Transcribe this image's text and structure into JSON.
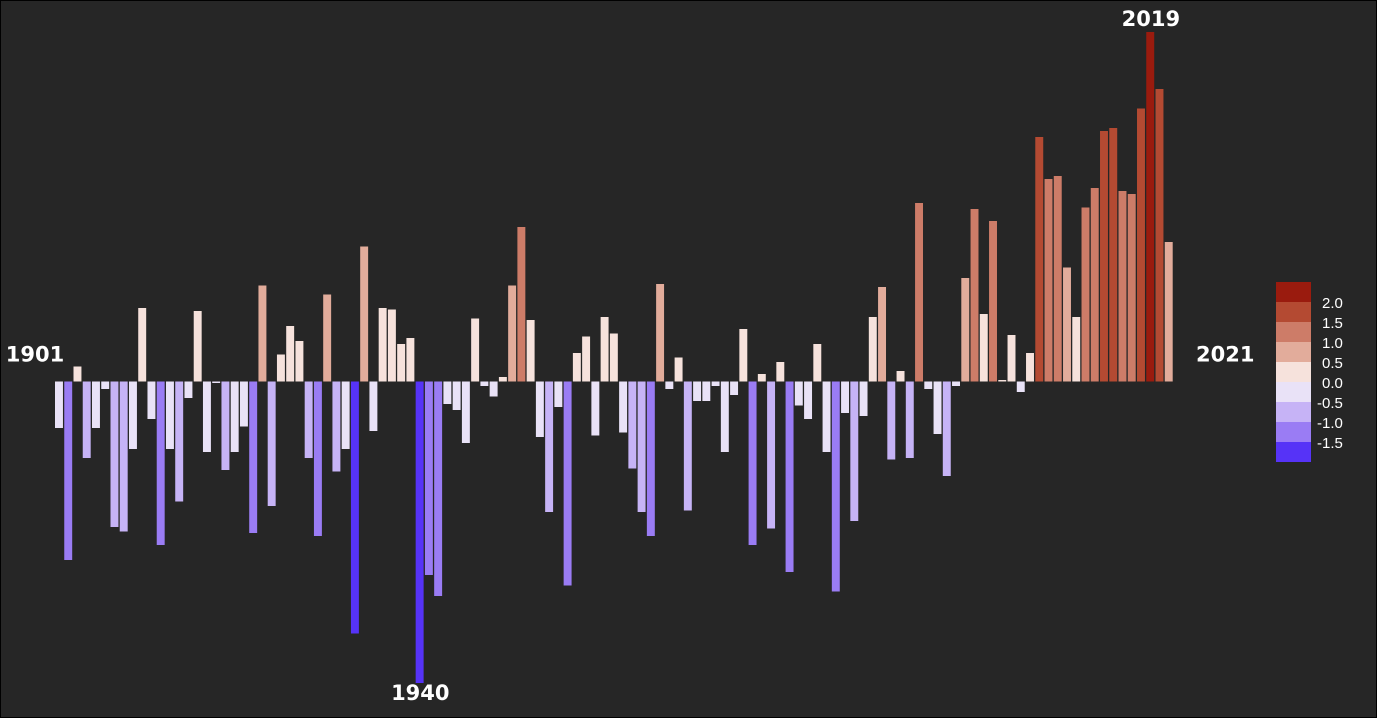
{
  "chart_data": {
    "type": "bar",
    "categories": [
      "1901",
      null,
      null,
      null,
      null,
      null,
      null,
      null,
      null,
      null,
      null,
      null,
      null,
      null,
      null,
      null,
      null,
      null,
      null,
      null,
      null,
      null,
      null,
      null,
      null,
      null,
      null,
      null,
      null,
      null,
      null,
      null,
      null,
      null,
      null,
      null,
      null,
      null,
      null,
      "1940",
      null,
      null,
      null,
      null,
      null,
      null,
      null,
      null,
      null,
      null,
      null,
      null,
      null,
      null,
      null,
      null,
      null,
      null,
      null,
      null,
      null,
      null,
      null,
      null,
      null,
      null,
      null,
      null,
      null,
      null,
      null,
      null,
      null,
      null,
      null,
      null,
      null,
      null,
      null,
      null,
      null,
      null,
      null,
      null,
      null,
      null,
      null,
      null,
      null,
      null,
      null,
      null,
      null,
      null,
      null,
      null,
      null,
      null,
      null,
      null,
      null,
      null,
      null,
      null,
      null,
      null,
      null,
      null,
      null,
      null,
      null,
      null,
      null,
      null,
      null,
      null,
      null,
      null,
      "2019",
      null,
      "2021"
    ],
    "values": [
      -0.31,
      -1.19,
      0.1,
      -0.51,
      -0.31,
      -0.05,
      -0.97,
      -1.0,
      -0.45,
      0.49,
      -0.25,
      -1.09,
      -0.45,
      -0.8,
      -0.11,
      0.47,
      -0.47,
      -0.01,
      -0.59,
      -0.47,
      -0.3,
      -1.01,
      0.64,
      -0.83,
      0.18,
      0.37,
      0.27,
      -0.51,
      -1.03,
      0.58,
      -0.6,
      -0.45,
      -1.68,
      0.9,
      -0.33,
      0.49,
      0.48,
      0.25,
      0.29,
      -2.01,
      -1.29,
      -1.43,
      -0.15,
      -0.19,
      -0.41,
      0.42,
      -0.03,
      -0.1,
      0.03,
      0.64,
      1.03,
      0.41,
      -0.37,
      -0.87,
      -0.17,
      -1.36,
      0.19,
      0.3,
      -0.36,
      0.43,
      0.32,
      -0.34,
      -0.58,
      -0.87,
      -1.03,
      0.65,
      -0.05,
      0.16,
      -0.86,
      -0.13,
      -0.13,
      -0.03,
      -0.47,
      -0.09,
      0.35,
      -1.09,
      0.05,
      -0.98,
      0.13,
      -1.27,
      -0.16,
      -0.25,
      0.25,
      -0.47,
      -1.4,
      -0.21,
      -0.93,
      -0.23,
      0.43,
      0.63,
      -0.52,
      0.07,
      -0.51,
      1.19,
      -0.05,
      -0.35,
      -0.63,
      -0.03,
      0.69,
      1.15,
      0.45,
      1.07,
      0.01,
      0.31,
      -0.07,
      0.19,
      1.63,
      1.35,
      1.37,
      0.76,
      0.43,
      1.16,
      1.29,
      1.67,
      1.69,
      1.27,
      1.25,
      1.82,
      2.33,
      1.95,
      0.93
    ],
    "color_scale": {
      "thresholds": [
        {
          "value": 2,
          "label": "2.0"
        },
        1.5,
        {
          "value": 1,
          "label": "1.0"
        },
        0.5,
        {
          "value": 0,
          "label": "0.0"
        },
        -0.5,
        {
          "value": -1,
          "label": "-1.0"
        },
        -1.5
      ],
      "colors": [
        "#9a1b0e",
        "#b44a32",
        "#cd7c68",
        "#e2ac9b",
        "#f6e2dc",
        "#e9e2f7",
        "#c6b3f6",
        "#9a7cf4",
        "#5633f7"
      ]
    }
  }
}
